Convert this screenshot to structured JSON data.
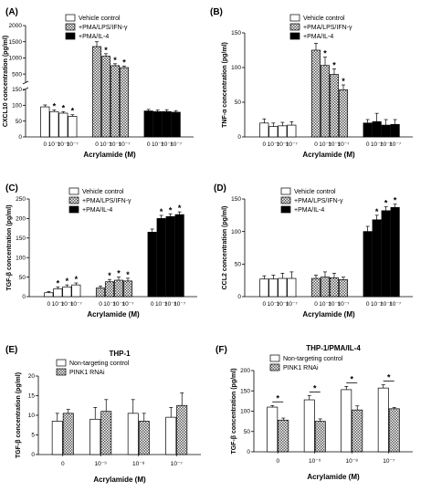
{
  "colors": {
    "white": "#ffffff",
    "black": "#000000",
    "checker_a": "#ffffff",
    "checker_b": "#555555"
  },
  "chart_data": [
    {
      "panel": "(A)",
      "type": "bar",
      "title": "",
      "ylabel": "CXCL10 concentration (pg/ml)",
      "xlabel": "Acrylamide (M)",
      "yaxis_break": true,
      "ylim_lower": [
        0,
        150
      ],
      "ylim_upper": [
        250,
        2000
      ],
      "yticks_lower": [
        "0",
        "50",
        "100",
        "150"
      ],
      "yticks_upper": [
        "500",
        "1000",
        "1500",
        "2000"
      ],
      "group_xticks": [
        "0",
        "10⁻⁹",
        "10⁻⁸",
        "10⁻⁷"
      ],
      "legend": [
        "Vehicle control",
        "+PMA/LPS/IFN-γ",
        "+PMA/IL-4"
      ],
      "series": [
        {
          "name": "Vehicle control",
          "pattern": "white",
          "values": [
            95,
            80,
            75,
            65
          ],
          "errors": [
            6,
            5,
            5,
            5
          ],
          "stars": [
            false,
            true,
            true,
            true
          ]
        },
        {
          "name": "+PMA/LPS/IFN-γ",
          "pattern": "checker",
          "values": [
            1350,
            1050,
            760,
            700
          ],
          "errors": [
            150,
            80,
            60,
            50
          ],
          "stars": [
            false,
            true,
            true,
            true
          ]
        },
        {
          "name": "+PMA/IL-4",
          "pattern": "black",
          "values": [
            82,
            80,
            80,
            78
          ],
          "errors": [
            5,
            5,
            6,
            5
          ],
          "stars": [
            false,
            false,
            false,
            false
          ]
        }
      ]
    },
    {
      "panel": "(B)",
      "type": "bar",
      "title": "",
      "ylabel": "TNF-α concentration (pg/ml)",
      "xlabel": "Acrylamide (M)",
      "ylim": [
        0,
        150
      ],
      "yticks": [
        "0",
        "50",
        "100",
        "150"
      ],
      "group_xticks": [
        "0",
        "10⁻⁹",
        "10⁻⁸",
        "10⁻⁷"
      ],
      "legend": [
        "Vehicle control",
        "+PMA/LPS/IFN-γ",
        "+PMA/IL-4"
      ],
      "series": [
        {
          "name": "Vehicle control",
          "pattern": "white",
          "values": [
            20,
            15,
            16,
            17
          ],
          "errors": [
            6,
            5,
            5,
            5
          ],
          "stars": [
            false,
            false,
            false,
            false
          ]
        },
        {
          "name": "+PMA/LPS/IFN-γ",
          "pattern": "checker",
          "values": [
            125,
            103,
            90,
            68
          ],
          "errors": [
            10,
            12,
            8,
            7
          ],
          "stars": [
            false,
            true,
            true,
            true
          ]
        },
        {
          "name": "+PMA/IL-4",
          "pattern": "black",
          "values": [
            20,
            22,
            17,
            18
          ],
          "errors": [
            5,
            12,
            8,
            7
          ],
          "stars": [
            false,
            false,
            false,
            false
          ]
        }
      ]
    },
    {
      "panel": "(C)",
      "type": "bar",
      "title": "",
      "ylabel": "TGF-β concentration (pg/ml)",
      "xlabel": "Acrylamide (M)",
      "ylim": [
        0,
        250
      ],
      "yticks": [
        "0",
        "50",
        "100",
        "150",
        "200",
        "250"
      ],
      "group_xticks": [
        "0",
        "10⁻⁹",
        "10⁻⁸",
        "10⁻⁷"
      ],
      "legend": [
        "Vehicle control",
        "+PMA/LPS/IFN-γ",
        "+PMA/IL-4"
      ],
      "series": [
        {
          "name": "Vehicle control",
          "pattern": "white",
          "values": [
            10,
            20,
            25,
            30
          ],
          "errors": [
            3,
            5,
            5,
            5
          ],
          "stars": [
            false,
            true,
            true,
            true
          ]
        },
        {
          "name": "+PMA/LPS/IFN-γ",
          "pattern": "checker",
          "values": [
            22,
            38,
            42,
            40
          ],
          "errors": [
            5,
            6,
            8,
            7
          ],
          "stars": [
            false,
            true,
            true,
            true
          ]
        },
        {
          "name": "+PMA/IL-4",
          "pattern": "black",
          "values": [
            165,
            200,
            205,
            210
          ],
          "errors": [
            8,
            8,
            7,
            7
          ],
          "stars": [
            false,
            true,
            true,
            true
          ]
        }
      ]
    },
    {
      "panel": "(D)",
      "type": "bar",
      "title": "",
      "ylabel": "CCL2 concentration (pg/ml)",
      "xlabel": "Acrylamide (M)",
      "ylim": [
        0,
        150
      ],
      "yticks": [
        "0",
        "50",
        "100",
        "150"
      ],
      "group_xticks": [
        "0",
        "10⁻⁹",
        "10⁻⁸",
        "10⁻⁷"
      ],
      "legend": [
        "Vehicle control",
        "+PMA/LPS/IFN-γ",
        "+PMA/IL-4"
      ],
      "series": [
        {
          "name": "Vehicle control",
          "pattern": "white",
          "values": [
            27,
            27,
            28,
            28
          ],
          "errors": [
            5,
            6,
            8,
            10
          ],
          "stars": [
            false,
            false,
            false,
            false
          ]
        },
        {
          "name": "+PMA/LPS/IFN-γ",
          "pattern": "checker",
          "values": [
            28,
            30,
            29,
            26
          ],
          "errors": [
            5,
            8,
            7,
            4
          ],
          "stars": [
            false,
            false,
            false,
            false
          ]
        },
        {
          "name": "+PMA/IL-4",
          "pattern": "black",
          "values": [
            100,
            118,
            132,
            137
          ],
          "errors": [
            8,
            7,
            6,
            5
          ],
          "stars": [
            false,
            true,
            true,
            true
          ]
        }
      ]
    },
    {
      "panel": "(E)",
      "type": "bar",
      "title": "THP-1",
      "ylabel": "TGF-β concentration (pg/ml)",
      "xlabel": "Acrylamide (M)",
      "ylim": [
        0,
        20
      ],
      "yticks": [
        "0",
        "5",
        "10",
        "15",
        "20"
      ],
      "categories": [
        "0",
        "10⁻⁹",
        "10⁻⁸",
        "10⁻⁷"
      ],
      "legend": [
        "Non-targeting control",
        "PINK1 RNAi"
      ],
      "series": [
        {
          "name": "Non-targeting control",
          "pattern": "white",
          "values": [
            8.5,
            9.0,
            10.5,
            9.5
          ],
          "errors": [
            2.0,
            3.0,
            3.5,
            2.5
          ]
        },
        {
          "name": "PINK1 RNAi",
          "pattern": "checker",
          "values": [
            10.5,
            11.0,
            8.5,
            12.5
          ],
          "errors": [
            1.0,
            3.0,
            2.0,
            3.2
          ]
        }
      ],
      "comparison_stars": [
        false,
        false,
        false,
        false
      ]
    },
    {
      "panel": "(F)",
      "type": "bar",
      "title": "THP-1/PMA/IL-4",
      "ylabel": "TGF-β concentration (pg/ml)",
      "xlabel": "Acrylamide (M)",
      "ylim": [
        0,
        200
      ],
      "yticks": [
        "0",
        "50",
        "100",
        "150",
        "200"
      ],
      "categories": [
        "0",
        "10⁻⁹",
        "10⁻⁸",
        "10⁻⁷"
      ],
      "legend": [
        "Non-targeting control",
        "PINK1 RNAi"
      ],
      "series": [
        {
          "name": "Non-targeting control",
          "pattern": "white",
          "values": [
            110,
            128,
            153,
            157
          ],
          "errors": [
            4,
            10,
            8,
            8
          ],
          "stars": [
            false,
            false,
            false,
            false
          ]
        },
        {
          "name": "PINK1 RNAi",
          "pattern": "checker",
          "values": [
            78,
            75,
            103,
            106
          ],
          "errors": [
            5,
            6,
            10,
            3
          ],
          "stars": [
            false,
            false,
            false,
            false
          ]
        }
      ],
      "comparison_stars": [
        true,
        true,
        true,
        true
      ]
    }
  ]
}
